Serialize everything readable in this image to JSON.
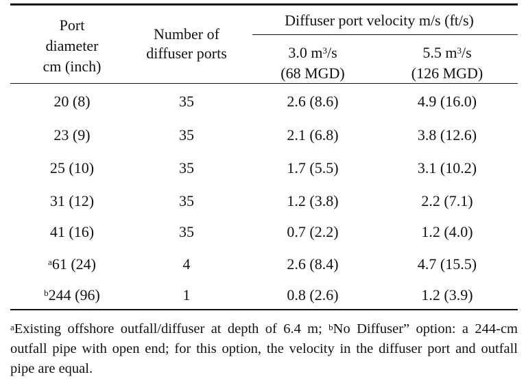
{
  "table": {
    "headers": {
      "port_diameter": [
        "Port",
        "diameter",
        "cm (inch)"
      ],
      "num_ports": [
        "Number of",
        "diffuser ports"
      ],
      "velocity_group": "Diffuser port velocity m/s (ft/s)",
      "flow1": {
        "line1_pre": "3.0 m",
        "sup": "3",
        "line1_post": "/s",
        "line2": "(68 MGD)"
      },
      "flow2": {
        "line1_pre": "5.5 m",
        "sup": "3",
        "line1_post": "/s",
        "line2": "(126 MGD)"
      }
    },
    "rows": [
      {
        "note": "",
        "diameter": "20 (8)",
        "ports": "35",
        "v1": "2.6 (8.6)",
        "v2": "4.9 (16.0)"
      },
      {
        "note": "",
        "diameter": "23 (9)",
        "ports": "35",
        "v1": "2.1 (6.8)",
        "v2": "3.8 (12.6)"
      },
      {
        "note": "",
        "diameter": "25 (10)",
        "ports": "35",
        "v1": "1.7 (5.5)",
        "v2": "3.1 (10.2)"
      },
      {
        "note": "",
        "diameter": "31 (12)",
        "ports": "35",
        "v1": "1.2 (3.8)",
        "v2": "2.2 (7.1)"
      },
      {
        "note": "",
        "diameter": "41 (16)",
        "ports": "35",
        "v1": "0.7 (2.2)",
        "v2": "1.2 (4.0)"
      },
      {
        "note": "a",
        "diameter": "61 (24)",
        "ports": "4",
        "v1": "2.6 (8.4)",
        "v2": "4.7 (15.5)"
      },
      {
        "note": "b",
        "diameter": "244 (96)",
        "ports": "1",
        "v1": "0.8 (2.6)",
        "v2": "1.2 (3.9)"
      }
    ],
    "footnote": {
      "a_mark": "a",
      "a_text": "Existing offshore outfall/diffuser at depth of 6.4 m; ",
      "b_mark": "b",
      "b_text": "No Diffuser” option: a 244-cm outfall pipe with open end; for this option, the velocity in the diffuser port and outfall pipe are equal."
    }
  }
}
